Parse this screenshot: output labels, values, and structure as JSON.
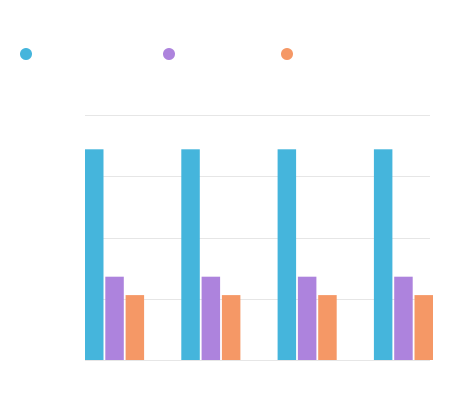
{
  "chart_data": {
    "type": "bar",
    "title": "",
    "xlabel": "",
    "ylabel": "",
    "categories": [
      "",
      "",
      "",
      ""
    ],
    "ylim": [
      0,
      100
    ],
    "grid": true,
    "legend_position": "top-left",
    "series": [
      {
        "color": "#45b5dc",
        "values": [
          86,
          86,
          86,
          86
        ]
      },
      {
        "color": "#ad83dd",
        "values": [
          34,
          34,
          34,
          34
        ]
      },
      {
        "color": "#f59866",
        "values": [
          26.5,
          26.5,
          26.5,
          26.5
        ]
      }
    ]
  }
}
